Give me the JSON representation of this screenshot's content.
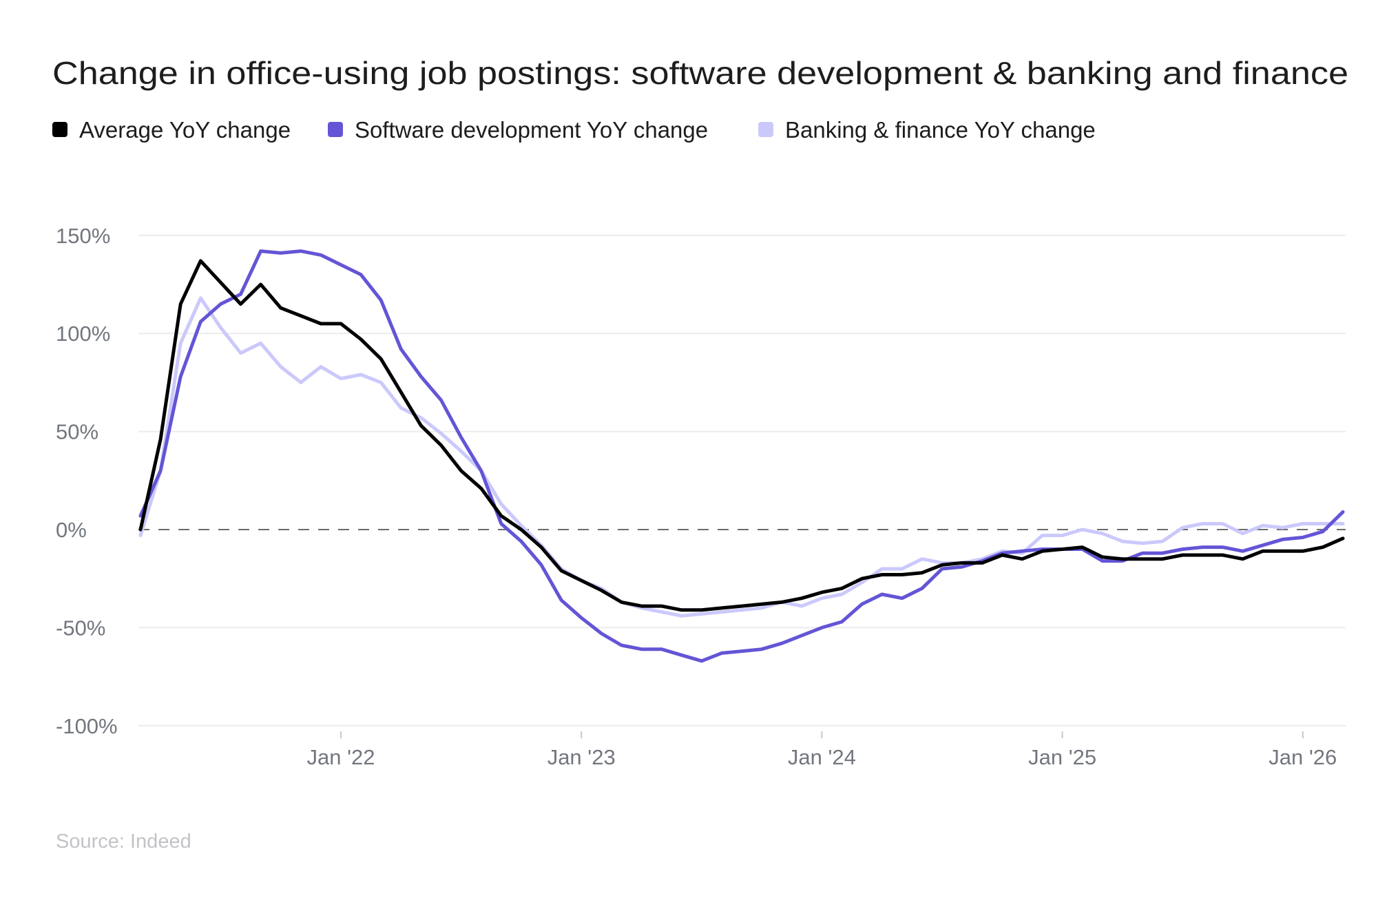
{
  "chart_data": {
    "type": "line",
    "title": "Change in office-using job postings: software development & banking and finance",
    "source": "Source: Indeed",
    "xlabel": "",
    "ylabel": "",
    "ylim": [
      -100,
      150
    ],
    "y_ticks": [
      150,
      100,
      50,
      0,
      -50,
      -100
    ],
    "y_tick_labels": [
      "150%",
      "100%",
      "50%",
      "0%",
      "-50%",
      "-100%"
    ],
    "x_ticks": [
      {
        "label": "Jan '22",
        "month": "2022-01"
      },
      {
        "label": "Jan '23",
        "month": "2023-01"
      },
      {
        "label": "Jan '24",
        "month": "2024-01"
      },
      {
        "label": "Jan '25",
        "month": "2025-01"
      },
      {
        "label": "Jan '26",
        "month": "2026-01"
      }
    ],
    "x_start": "2021-03",
    "x_step": "month",
    "grid": true,
    "reference_line": {
      "value": 0,
      "style": "dashed"
    },
    "legend_position": "top-left",
    "series": [
      {
        "name": "Average YoY change",
        "color": "#000000",
        "values": [
          0,
          46,
          115,
          137,
          126,
          115,
          125,
          113,
          109,
          105,
          105,
          97,
          87,
          70,
          53,
          43,
          30,
          21,
          7,
          0,
          -9,
          -21,
          -26,
          -31,
          -37,
          -39,
          -39,
          -41,
          -41,
          -40,
          -39,
          -38,
          -37,
          -35,
          -32,
          -30,
          -25,
          -23,
          -23,
          -22,
          -18,
          -17,
          -17,
          -13,
          -15,
          -11,
          -10,
          -9,
          -14,
          -15,
          -15,
          -15,
          -13,
          -13,
          -13,
          -15,
          -11,
          -11,
          -11,
          -9,
          -4.5
        ]
      },
      {
        "name": "Software development YoY change",
        "color": "#6355d6",
        "values": [
          7,
          30,
          78,
          106,
          115,
          120,
          142,
          141,
          142,
          140,
          135,
          130,
          117,
          92,
          78,
          66,
          47,
          30,
          3,
          -6,
          -18,
          -36,
          -45,
          -53,
          -59,
          -61,
          -61,
          -64,
          -67,
          -63,
          -62,
          -61,
          -58,
          -54,
          -50,
          -47,
          -38,
          -33,
          -35,
          -30,
          -20,
          -19,
          -16,
          -12,
          -11,
          -10,
          -10,
          -10,
          -16,
          -16,
          -12,
          -12,
          -10,
          -9,
          -9,
          -11,
          -8,
          -5,
          -4,
          -1,
          9
        ]
      },
      {
        "name": "Banking & finance YoY change",
        "color": "#cbc9fb",
        "values": [
          -3,
          30,
          95,
          118,
          103,
          90,
          95,
          83,
          75,
          83,
          77,
          79,
          75,
          62,
          57,
          49,
          40,
          30,
          13,
          2,
          -8,
          -20,
          -26,
          -30,
          -37,
          -40,
          -42,
          -44,
          -43,
          -42,
          -41,
          -40,
          -37,
          -39,
          -35,
          -33,
          -27,
          -20,
          -20,
          -15,
          -17,
          -17,
          -15,
          -11,
          -12,
          -3,
          -3,
          0,
          -2,
          -6,
          -7,
          -6,
          1,
          3,
          3,
          -2,
          2,
          1,
          3,
          3,
          3
        ]
      }
    ]
  }
}
